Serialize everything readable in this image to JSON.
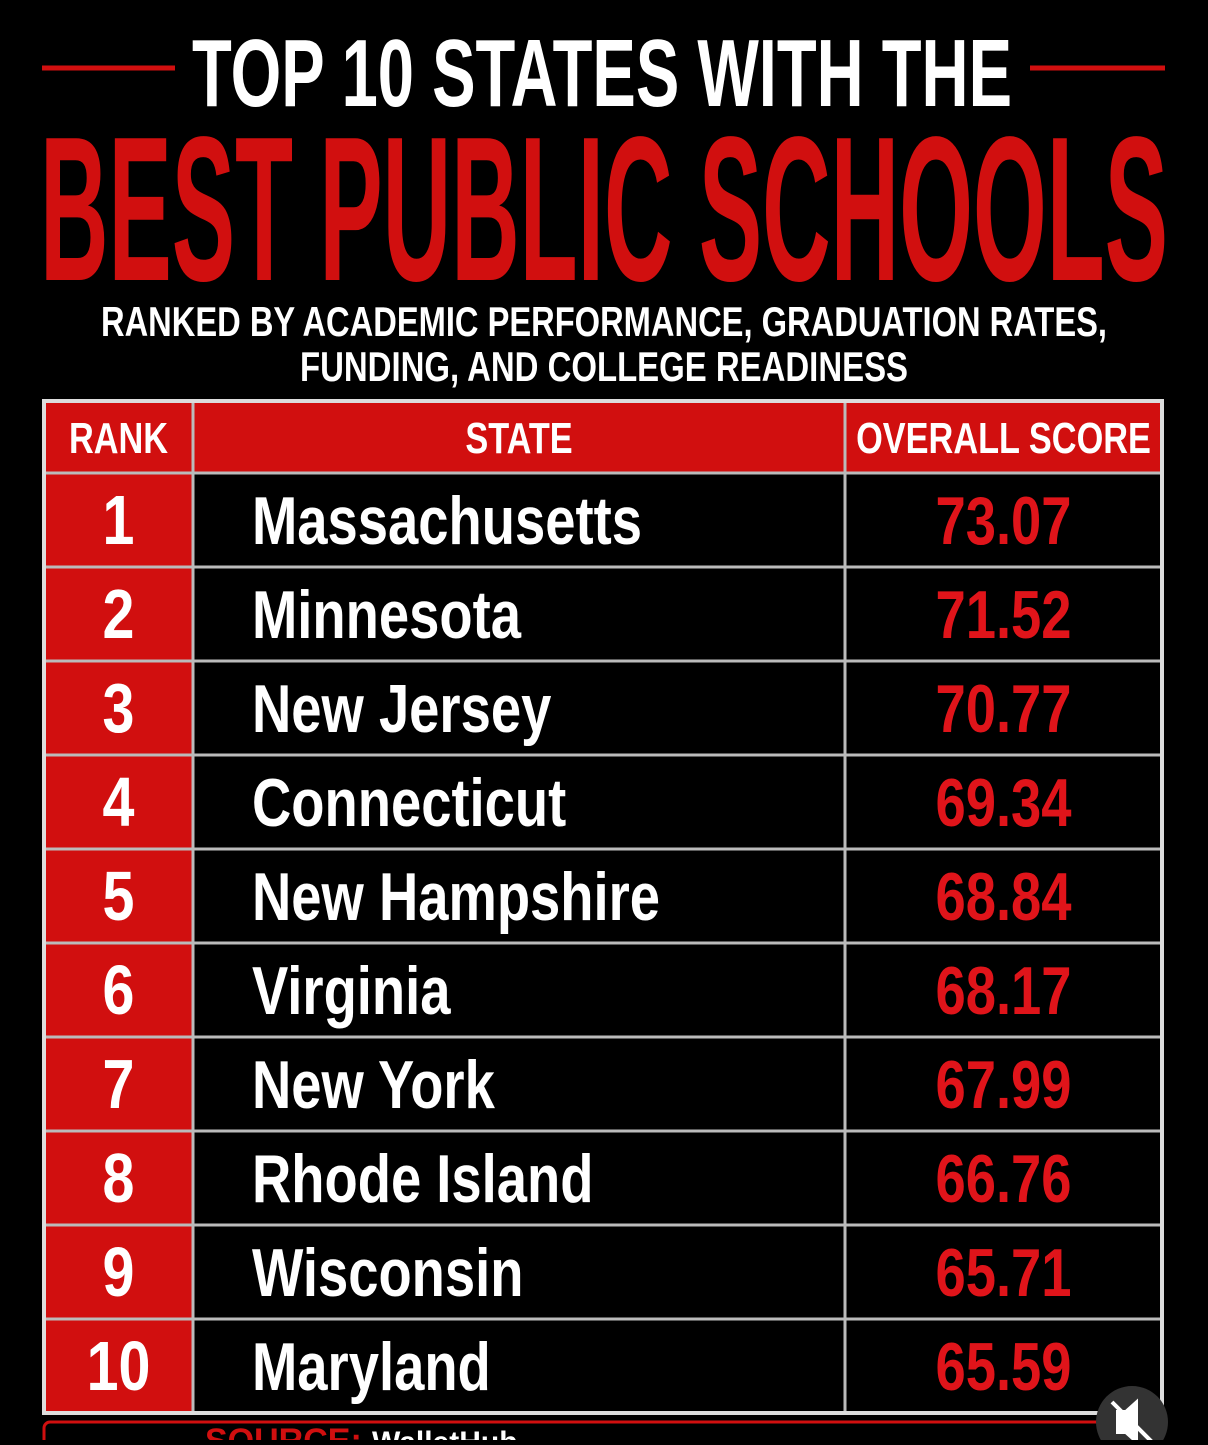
{
  "header": {
    "title_line1": "TOP 10 STATES WITH THE",
    "title_line2": "BEST PUBLIC SCHOOLS",
    "subtitle": [
      "RANKED BY ACADEMIC PERFORMANCE, GRADUATION RATES,",
      "FUNDING, AND COLLEGE READINESS"
    ]
  },
  "table": {
    "columns": [
      "RANK",
      "STATE",
      "OVERALL SCORE"
    ],
    "rows": [
      [
        1,
        "Massachusetts",
        73.07
      ],
      [
        2,
        "Minnesota",
        71.52
      ],
      [
        3,
        "New Jersey",
        70.77
      ],
      [
        4,
        "Connecticut",
        69.34
      ],
      [
        5,
        "New Hampshire",
        68.84
      ],
      [
        6,
        "Virginia",
        68.17
      ],
      [
        7,
        "New York",
        67.99
      ],
      [
        8,
        "Rhode Island",
        66.76
      ],
      [
        9,
        "Wisconsin",
        65.71
      ],
      [
        10,
        "Maryland",
        65.59
      ]
    ]
  },
  "footer": {
    "source_label": "SOURCE:",
    "source": "WalletHub"
  }
}
